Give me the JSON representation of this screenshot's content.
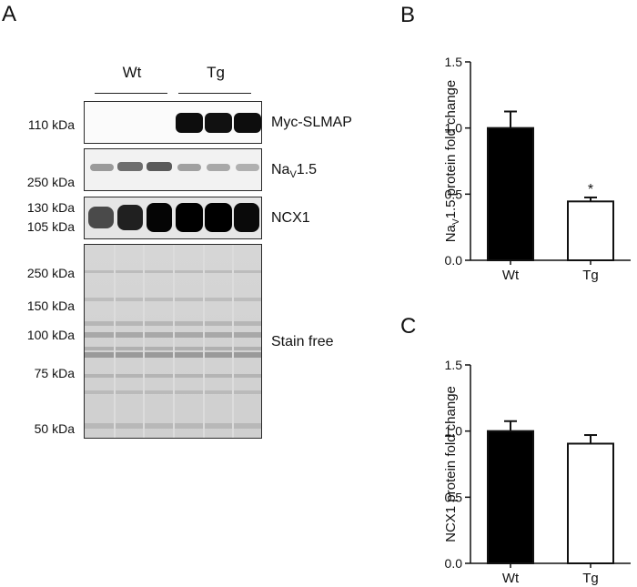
{
  "panel_a": {
    "letter": "A",
    "groups": [
      "Wt",
      "Tg"
    ],
    "rows": [
      {
        "mw": [
          "110 kDa"
        ],
        "label": "Myc-SLMAP",
        "sub": ""
      },
      {
        "mw": [
          "250 kDa"
        ],
        "label": "Na",
        "sub": "V",
        "label_suffix": "1.5"
      },
      {
        "mw": [
          "130 kDa",
          "105 kDa"
        ],
        "label": "NCX1",
        "sub": ""
      },
      {
        "mw": [
          "250 kDa",
          "150 kDa",
          "100 kDa",
          "75 kDa",
          "50 kDa"
        ],
        "label": "Stain free",
        "sub": ""
      }
    ]
  },
  "chart_data": [
    {
      "panel": "B",
      "type": "bar",
      "categories": [
        "Wt",
        "Tg"
      ],
      "values": [
        1.0,
        0.445
      ],
      "errors": [
        0.125,
        0.03
      ],
      "bar_fills": [
        "#000000",
        "#ffffff"
      ],
      "ylabel_main": "Na",
      "ylabel_sub": "V",
      "ylabel_rest": "1.5 protein fold change",
      "ylim": [
        0,
        1.5
      ],
      "yticks": [
        "0.0",
        "0.5",
        "1.0",
        "1.5"
      ],
      "annotation": "*"
    },
    {
      "panel": "C",
      "type": "bar",
      "categories": [
        "Wt",
        "Tg"
      ],
      "values": [
        1.0,
        0.905
      ],
      "errors": [
        0.075,
        0.065
      ],
      "bar_fills": [
        "#000000",
        "#ffffff"
      ],
      "ylabel": "NCX1 protein fold change",
      "ylim": [
        0,
        1.5
      ],
      "yticks": [
        "0.0",
        "0.5",
        "1.0",
        "1.5"
      ]
    }
  ]
}
